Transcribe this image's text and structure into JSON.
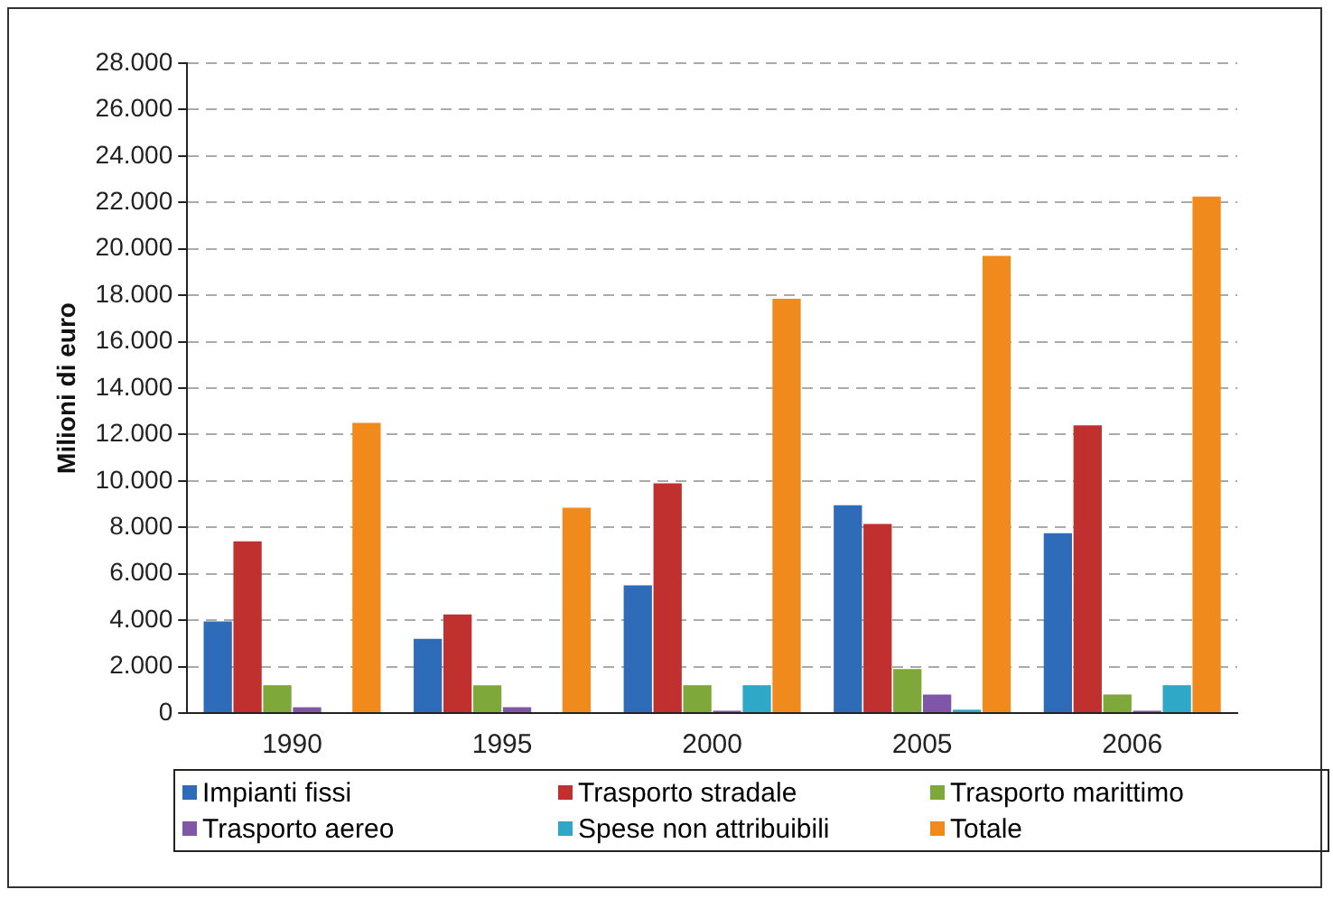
{
  "chart_data": {
    "type": "bar",
    "ylabel": "Milioni di euro",
    "categories": [
      "1990",
      "1995",
      "2000",
      "2005",
      "2006"
    ],
    "series": [
      {
        "name": "Impianti fissi",
        "color": "#2e6bb8",
        "values": [
          3950,
          3200,
          5500,
          8950,
          7750
        ]
      },
      {
        "name": "Trasporto stradale",
        "color": "#c0302f",
        "values": [
          7400,
          4250,
          9900,
          8150,
          12400
        ]
      },
      {
        "name": "Trasporto marittimo",
        "color": "#7fa83a",
        "values": [
          1200,
          1200,
          1200,
          1900,
          800
        ]
      },
      {
        "name": "Trasporto aereo",
        "color": "#8057a8",
        "values": [
          250,
          250,
          100,
          800,
          100
        ]
      },
      {
        "name": "Spese non attribuibili",
        "color": "#2fa8c8",
        "values": [
          null,
          null,
          1200,
          150,
          1200
        ]
      },
      {
        "name": "Totale",
        "color": "#f08a1c",
        "values": [
          12500,
          8850,
          17850,
          19700,
          22250
        ]
      }
    ],
    "ylim": [
      0,
      28000
    ],
    "yticks": [
      {
        "value": 0,
        "label": "0"
      },
      {
        "value": 2000,
        "label": "2.000"
      },
      {
        "value": 4000,
        "label": "4.000"
      },
      {
        "value": 6000,
        "label": "6.000"
      },
      {
        "value": 8000,
        "label": "8.000"
      },
      {
        "value": 10000,
        "label": "10.000"
      },
      {
        "value": 12000,
        "label": "12.000"
      },
      {
        "value": 14000,
        "label": "14.000"
      },
      {
        "value": 16000,
        "label": "16.000"
      },
      {
        "value": 18000,
        "label": "18.000"
      },
      {
        "value": 20000,
        "label": "20.000"
      },
      {
        "value": 22000,
        "label": "22.000"
      },
      {
        "value": 24000,
        "label": "24.000"
      },
      {
        "value": 26000,
        "label": "26.000"
      },
      {
        "value": 28000,
        "label": "28.000"
      }
    ],
    "grid": "y",
    "legend": "bottom"
  }
}
